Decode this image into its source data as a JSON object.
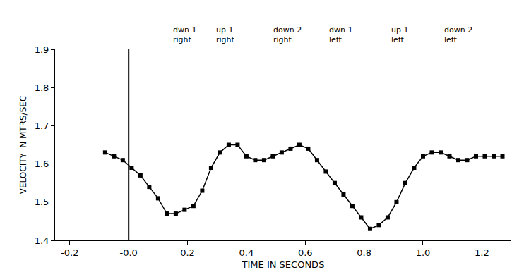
{
  "chart_data": {
    "type": "line",
    "x_label": "TIME IN SECONDS",
    "y_label": "VELOCITY IN MTRS/SEC",
    "x": [
      -0.08,
      -0.05,
      -0.02,
      0.01,
      0.04,
      0.07,
      0.1,
      0.13,
      0.16,
      0.19,
      0.22,
      0.25,
      0.28,
      0.31,
      0.34,
      0.37,
      0.4,
      0.43,
      0.46,
      0.49,
      0.52,
      0.55,
      0.58,
      0.61,
      0.64,
      0.67,
      0.7,
      0.73,
      0.76,
      0.79,
      0.82,
      0.85,
      0.88,
      0.91,
      0.94,
      0.97,
      1.0,
      1.03,
      1.06,
      1.09,
      1.12,
      1.15,
      1.18,
      1.21,
      1.24,
      1.27
    ],
    "values": [
      1.63,
      1.62,
      1.61,
      1.59,
      1.57,
      1.54,
      1.51,
      1.47,
      1.47,
      1.48,
      1.49,
      1.53,
      1.59,
      1.63,
      1.65,
      1.65,
      1.62,
      1.61,
      1.61,
      1.62,
      1.63,
      1.64,
      1.65,
      1.64,
      1.61,
      1.58,
      1.55,
      1.52,
      1.49,
      1.46,
      1.43,
      1.44,
      1.46,
      1.5,
      1.55,
      1.59,
      1.62,
      1.63,
      1.63,
      1.62,
      1.61,
      1.61,
      1.62,
      1.62,
      1.62,
      1.62
    ],
    "color": "#000000",
    "marker": "square",
    "line_style": "solid",
    "xlim": [
      -0.25,
      1.3
    ],
    "xticks": [
      -0.2,
      {
        "value": 0,
        "label": "-0.0"
      },
      0.2,
      0.4,
      0.6,
      0.8,
      {
        "value": 1.0,
        "label": "1.0"
      },
      1.2
    ],
    "ylim": [
      1.4,
      1.9
    ],
    "yticks": [
      1.4,
      1.5,
      1.6,
      1.7,
      1.8,
      1.9
    ],
    "vlines": [
      0
    ],
    "annotations": [
      {
        "x": 0.19,
        "text": "dwn 1 right"
      },
      {
        "x": 0.33,
        "text": "up 1 right"
      },
      {
        "x": 0.54,
        "text": "down 2 right"
      },
      {
        "x": 0.72,
        "text": "dwn 1 left"
      },
      {
        "x": 0.92,
        "text": "up 1 left"
      },
      {
        "x": 1.12,
        "text": "down 2 left"
      }
    ],
    "grid": false
  }
}
